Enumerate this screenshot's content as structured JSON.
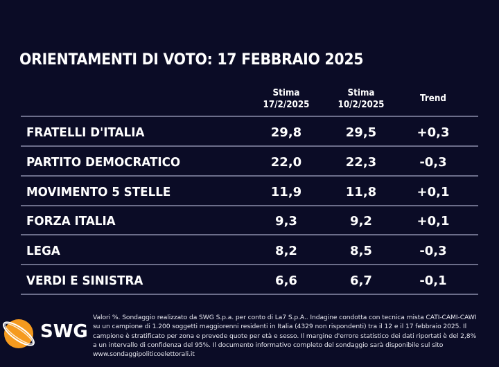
{
  "title": "ORIENTAMENTI DI VOTO: 17 FEBBRAIO 2025",
  "headers": {
    "col1": [
      "Stima",
      "17/2/2025"
    ],
    "col2": [
      "Stima",
      "10/2/2025"
    ],
    "trend": "Trend"
  },
  "rows": [
    {
      "party": "FRATELLI D'ITALIA",
      "current": "29,8",
      "previous": "29,5",
      "trend": "+0,3"
    },
    {
      "party": "PARTITO DEMOCRATICO",
      "current": "22,0",
      "previous": "22,3",
      "trend": "-0,3"
    },
    {
      "party": "MOVIMENTO 5 STELLE",
      "current": "11,9",
      "previous": "11,8",
      "trend": "+0,1"
    },
    {
      "party": "FORZA ITALIA",
      "current": "9,3",
      "previous": "9,2",
      "trend": "+0,1"
    },
    {
      "party": "LEGA",
      "current": "8,2",
      "previous": "8,5",
      "trend": "-0,3"
    },
    {
      "party": "VERDI E SINISTRA",
      "current": "6,6",
      "previous": "6,7",
      "trend": "-0,1"
    }
  ],
  "footnote": "Valori %. Sondaggio realizzato da SWG S.p.a. per conto di La7 S.p.A.. Indagine condotta con tecnica mista CATI-CAMI-CAWI su un campione di 1.200 soggetti maggiorenni residenti in Italia (4329 non rispondenti) tra il 12 e il 17 febbraio 2025. Il campione è stratificato per zona e prevede quote per età e sesso. Il margine d'errore statistico dei dati riportati è del 2,8% a un intervallo di confidenza del 95%. Il documento informativo completo del sondaggio sarà disponibile sul sito www.sondaggipoliticoelettorali.it",
  "logo": {
    "text": "SWG",
    "color": "#f59a1e"
  },
  "colors": {
    "background": "#0b0c26",
    "divider": "#6c6e8a"
  }
}
